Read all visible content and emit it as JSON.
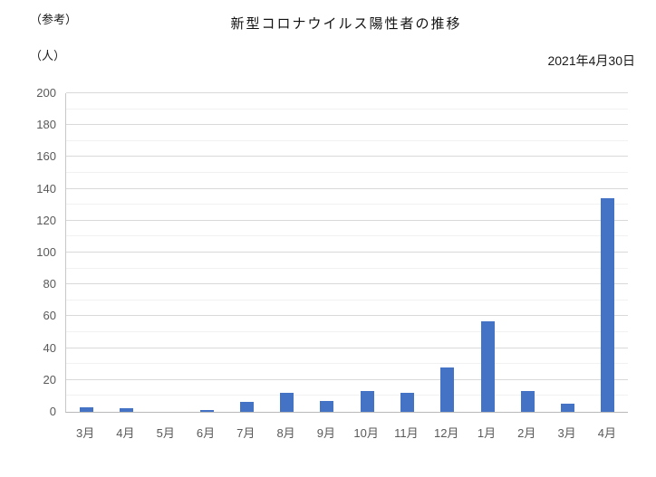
{
  "header": {
    "reference_label": "（参考）",
    "title": "新型コロナウイルス陽性者の推移",
    "unit_label": "（人）",
    "date": "2021年4月30日"
  },
  "chart_data": {
    "type": "bar",
    "title": "新型コロナウイルス陽性者の推移",
    "xlabel": "",
    "ylabel": "（人）",
    "categories": [
      "3月",
      "4月",
      "5月",
      "6月",
      "7月",
      "8月",
      "9月",
      "10月",
      "11月",
      "12月",
      "1月",
      "2月",
      "3月",
      "4月"
    ],
    "values": [
      3,
      2,
      0,
      1,
      6,
      12,
      7,
      13,
      12,
      28,
      57,
      13,
      5,
      134
    ],
    "ylim": [
      0,
      200
    ],
    "y_major_step": 20,
    "y_minor_step": 10,
    "grid": true,
    "legend": false,
    "bar_color": "#4472C4",
    "major_gridline_color": "#d9d9d9",
    "minor_gridline_color": "#f1f1f1",
    "axis_tick_color": "#595959"
  }
}
